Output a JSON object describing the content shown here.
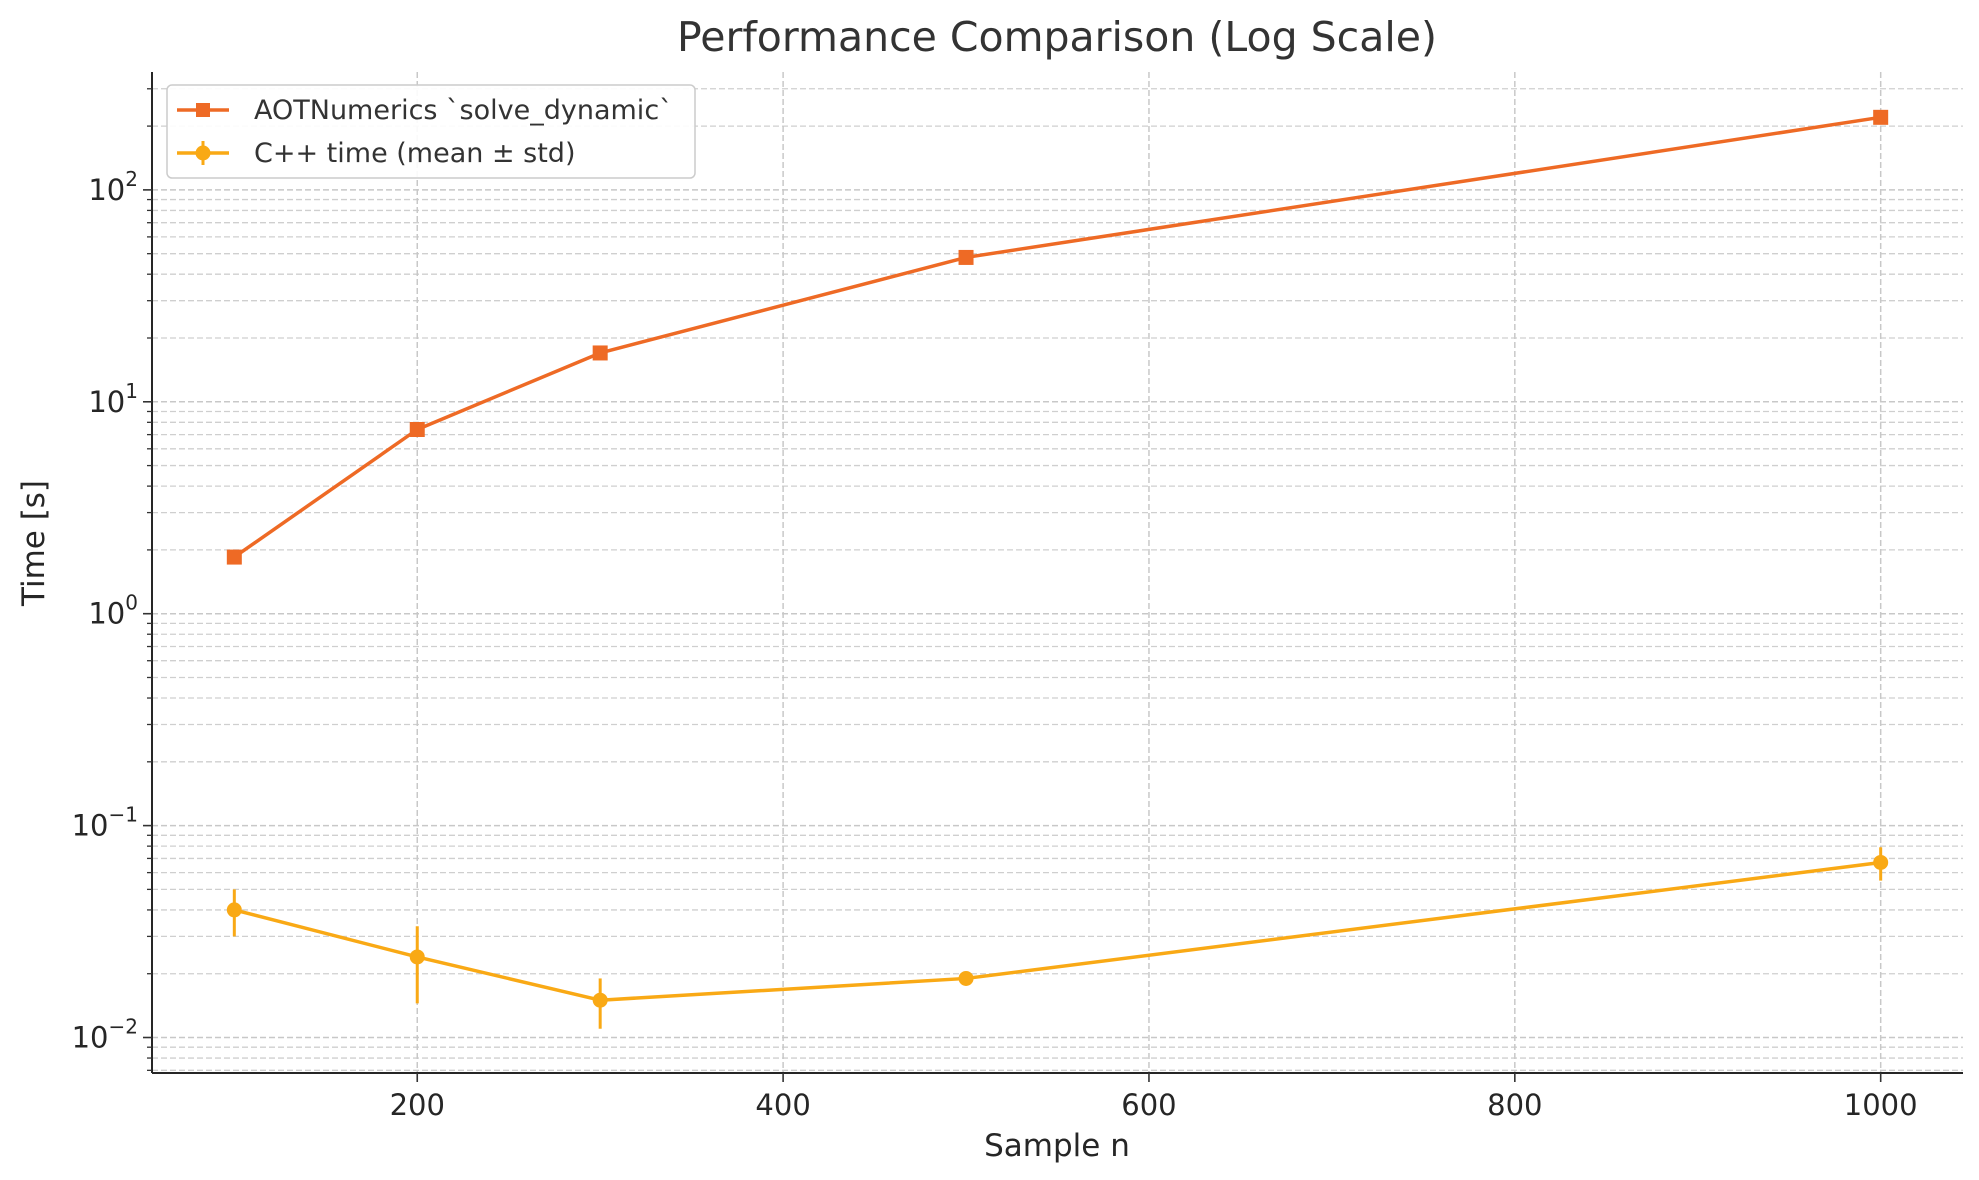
{
  "chart_data": {
    "type": "line",
    "title": "Performance Comparison (Log Scale)",
    "xlabel": "Sample n",
    "ylabel": "Time [s]",
    "x_scale": "linear",
    "y_scale": "log",
    "xlim": [
      55,
      1045
    ],
    "ylim": [
      0.0068,
      360
    ],
    "x_ticks": [
      200,
      400,
      600,
      800,
      1000
    ],
    "x_tick_labels": [
      "200",
      "400",
      "600",
      "800",
      "1000"
    ],
    "y_ticks": [
      0.01,
      0.1,
      1,
      10,
      100
    ],
    "y_tick_labels": [
      {
        "base": "10",
        "exp": "−2"
      },
      {
        "base": "10",
        "exp": "−1"
      },
      {
        "base": "10",
        "exp": "0"
      },
      {
        "base": "10",
        "exp": "1"
      },
      {
        "base": "10",
        "exp": "2"
      }
    ],
    "grid": true,
    "legend_position": "top-left",
    "series": [
      {
        "name": "AOTNumerics `solve_dynamic`",
        "color": "#ee6a25",
        "marker": "square",
        "x": [
          100,
          200,
          300,
          500,
          1000
        ],
        "y": [
          1.85,
          7.4,
          17,
          48,
          220
        ]
      },
      {
        "name": "C++ time (mean ± std)",
        "color": "#f9a915",
        "marker": "circle",
        "error_bars": true,
        "x": [
          100,
          200,
          300,
          500,
          1000
        ],
        "y": [
          0.04,
          0.024,
          0.015,
          0.019,
          0.067
        ],
        "y_err": [
          0.01,
          0.0095,
          0.004,
          0.001,
          0.012
        ]
      }
    ]
  }
}
